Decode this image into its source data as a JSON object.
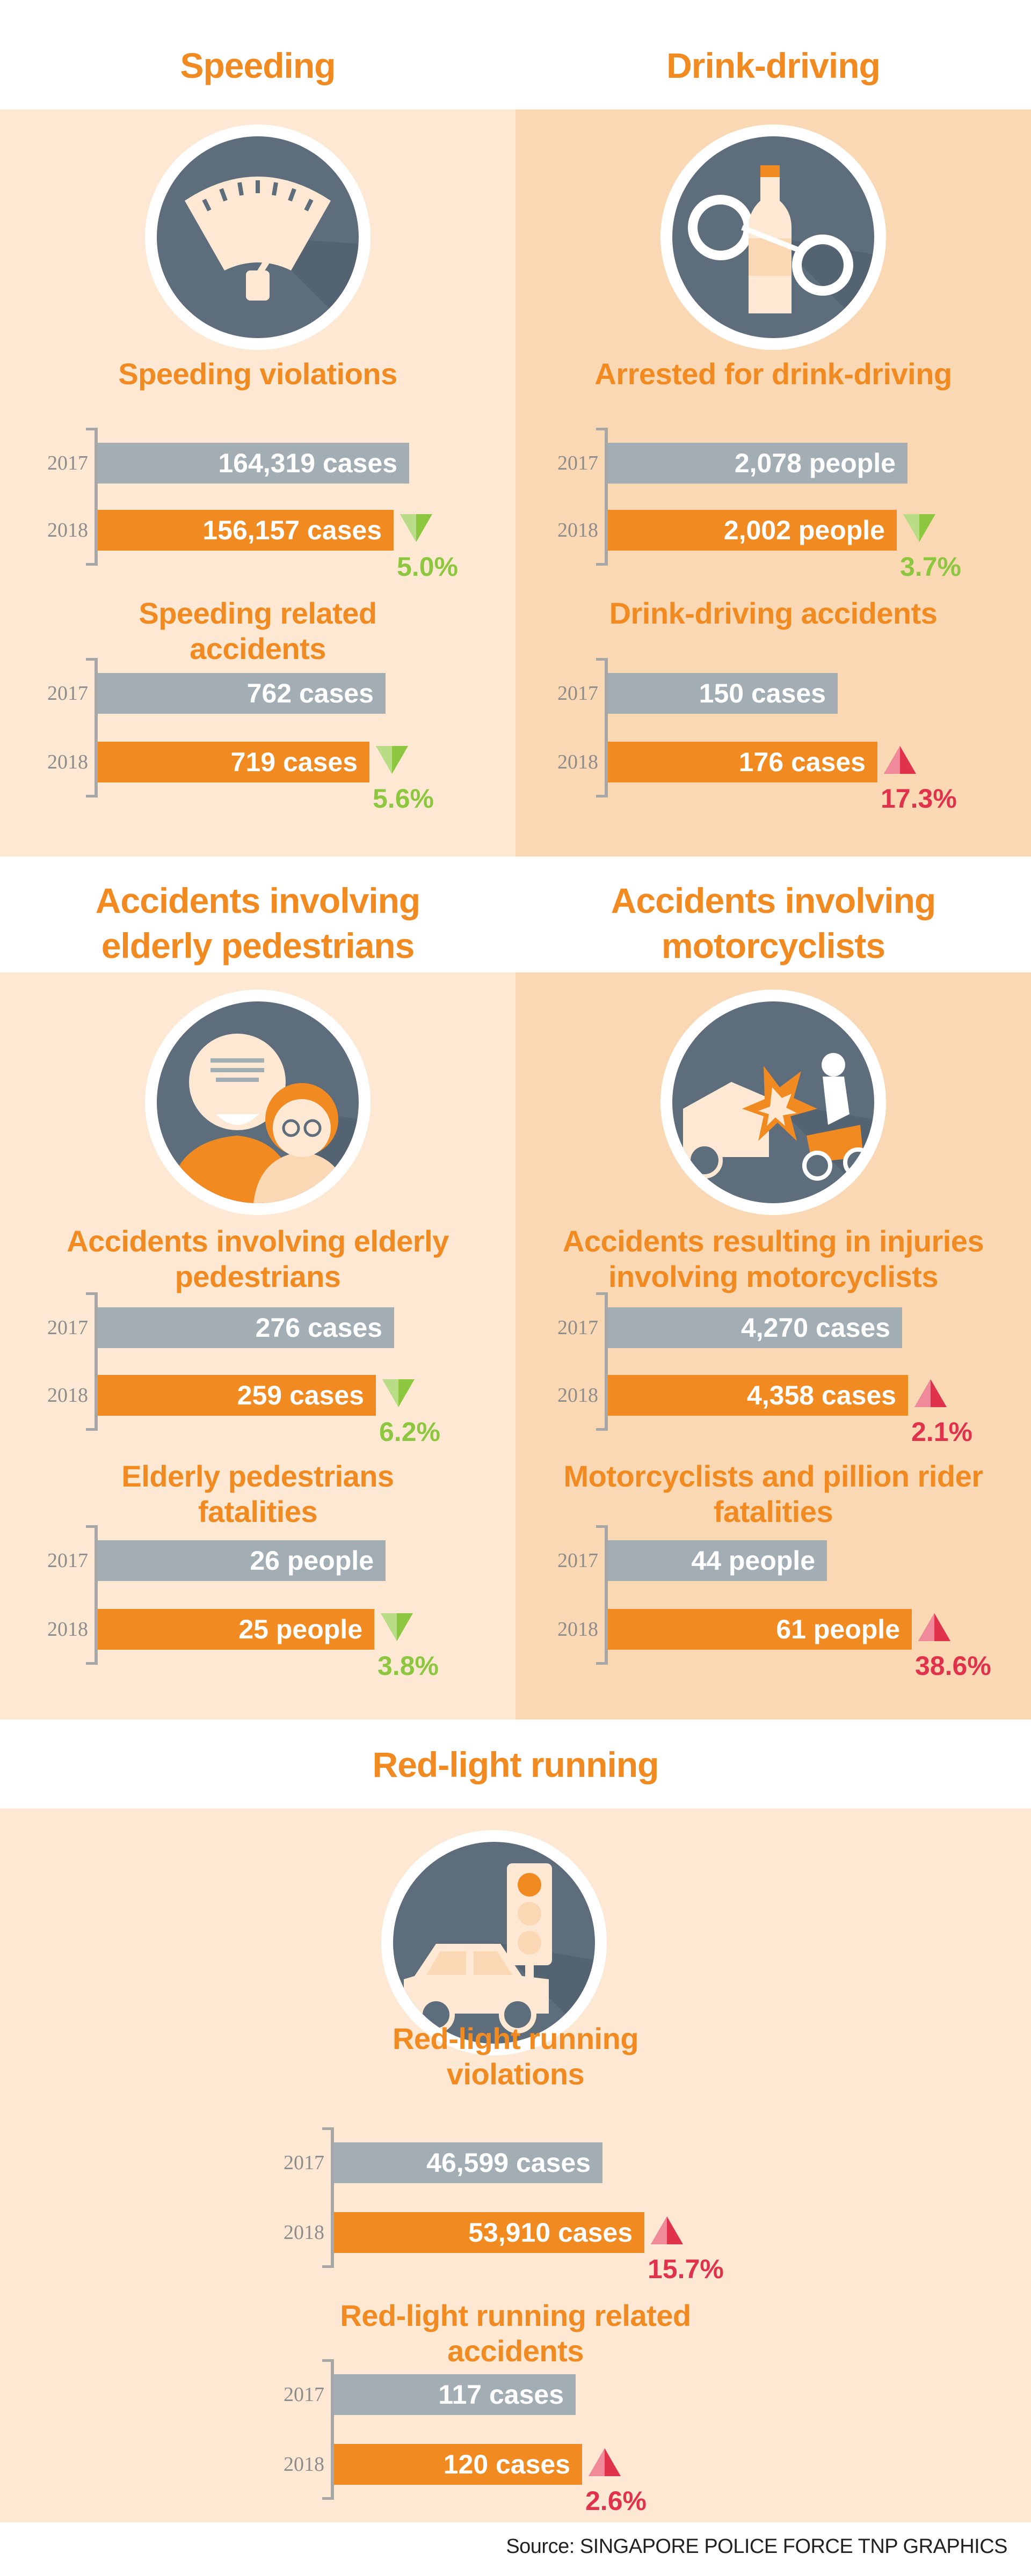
{
  "colors": {
    "accent": "#f08a21",
    "bar_2017": "#a2aeb3",
    "bar_2018": "#f08a21",
    "panel_light": "#fce8d3",
    "panel_dark": "#f9d8b3",
    "down": "#8dc63f",
    "up": "#e0324a",
    "icon_bg": "#5d6d7c"
  },
  "sections": [
    {
      "title": "Speeding",
      "icon": "speedometer-icon",
      "charts": [
        {
          "title": "Speeding violations",
          "change": "5.0%",
          "direction": "down",
          "bars": [
            {
              "year": "2017",
              "label": "164,319 cases"
            },
            {
              "year": "2018",
              "label": "156,157 cases"
            }
          ]
        },
        {
          "title": "Speeding related accidents",
          "change": "5.6%",
          "direction": "down",
          "bars": [
            {
              "year": "2017",
              "label": "762 cases"
            },
            {
              "year": "2018",
              "label": "719 cases"
            }
          ]
        }
      ]
    },
    {
      "title": "Drink-driving",
      "icon": "bottle-handcuffs-icon",
      "charts": [
        {
          "title": "Arrested for drink-driving",
          "change": "3.7%",
          "direction": "down",
          "bars": [
            {
              "year": "2017",
              "label": "2,078 people"
            },
            {
              "year": "2018",
              "label": "2,002 people"
            }
          ]
        },
        {
          "title": "Drink-driving accidents",
          "change": "17.3%",
          "direction": "up",
          "bars": [
            {
              "year": "2017",
              "label": "150 cases"
            },
            {
              "year": "2018",
              "label": "176 cases"
            }
          ]
        }
      ]
    },
    {
      "title": "Accidents involving elderly pedestrians",
      "icon": "elderly-couple-icon",
      "charts": [
        {
          "title": "Accidents involving elderly pedestrians",
          "change": "6.2%",
          "direction": "down",
          "bars": [
            {
              "year": "2017",
              "label": "276 cases"
            },
            {
              "year": "2018",
              "label": "259 cases"
            }
          ]
        },
        {
          "title": "Elderly pedestrians fatalities",
          "change": "3.8%",
          "direction": "down",
          "bars": [
            {
              "year": "2017",
              "label": "26 people"
            },
            {
              "year": "2018",
              "label": "25 people"
            }
          ]
        }
      ]
    },
    {
      "title": "Accidents involving motorcyclists",
      "icon": "motorcycle-crash-icon",
      "charts": [
        {
          "title": "Accidents resulting in injuries involving motorcyclists",
          "change": "2.1%",
          "direction": "up",
          "bars": [
            {
              "year": "2017",
              "label": "4,270 cases"
            },
            {
              "year": "2018",
              "label": "4,358 cases"
            }
          ]
        },
        {
          "title": "Motorcyclists and pillion rider fatalities",
          "change": "38.6%",
          "direction": "up",
          "bars": [
            {
              "year": "2017",
              "label": "44 people"
            },
            {
              "year": "2018",
              "label": "61 people"
            }
          ]
        }
      ]
    },
    {
      "title": "Red-light running",
      "icon": "traffic-light-car-icon",
      "charts": [
        {
          "title": "Red-light running violations",
          "change": "15.7%",
          "direction": "up",
          "bars": [
            {
              "year": "2017",
              "label": "46,599 cases"
            },
            {
              "year": "2018",
              "label": "53,910 cases"
            }
          ]
        },
        {
          "title": "Red-light running related accidents",
          "change": "2.6%",
          "direction": "up",
          "bars": [
            {
              "year": "2017",
              "label": "117 cases"
            },
            {
              "year": "2018",
              "label": "120 cases"
            }
          ]
        }
      ]
    }
  ],
  "chart_data": [
    {
      "type": "bar",
      "title": "Speeding violations",
      "categories": [
        "2017",
        "2018"
      ],
      "values": [
        164319,
        156157
      ],
      "unit": "cases",
      "change": "5.0%"
    },
    {
      "type": "bar",
      "title": "Speeding related accidents",
      "categories": [
        "2017",
        "2018"
      ],
      "values": [
        762,
        719
      ],
      "unit": "cases",
      "change": "5.6%"
    },
    {
      "type": "bar",
      "title": "Arrested for drink-driving",
      "categories": [
        "2017",
        "2018"
      ],
      "values": [
        2078,
        2002
      ],
      "unit": "people",
      "change": "3.7%"
    },
    {
      "type": "bar",
      "title": "Drink-driving accidents",
      "categories": [
        "2017",
        "2018"
      ],
      "values": [
        150,
        176
      ],
      "unit": "cases",
      "change": "17.3%"
    },
    {
      "type": "bar",
      "title": "Accidents involving elderly pedestrians",
      "categories": [
        "2017",
        "2018"
      ],
      "values": [
        276,
        259
      ],
      "unit": "cases",
      "change": "6.2%"
    },
    {
      "type": "bar",
      "title": "Elderly pedestrians fatalities",
      "categories": [
        "2017",
        "2018"
      ],
      "values": [
        26,
        25
      ],
      "unit": "people",
      "change": "3.8%"
    },
    {
      "type": "bar",
      "title": "Accidents resulting in injuries involving motorcyclists",
      "categories": [
        "2017",
        "2018"
      ],
      "values": [
        4270,
        4358
      ],
      "unit": "cases",
      "change": "2.1%"
    },
    {
      "type": "bar",
      "title": "Motorcyclists and pillion rider fatalities",
      "categories": [
        "2017",
        "2018"
      ],
      "values": [
        44,
        61
      ],
      "unit": "people",
      "change": "38.6%"
    },
    {
      "type": "bar",
      "title": "Red-light running violations",
      "categories": [
        "2017",
        "2018"
      ],
      "values": [
        46599,
        53910
      ],
      "unit": "cases",
      "change": "15.7%"
    },
    {
      "type": "bar",
      "title": "Red-light running related accidents",
      "categories": [
        "2017",
        "2018"
      ],
      "values": [
        117,
        120
      ],
      "unit": "cases",
      "change": "2.6%"
    }
  ],
  "source": "Source: SINGAPORE POLICE FORCE   TNP GRAPHICS"
}
